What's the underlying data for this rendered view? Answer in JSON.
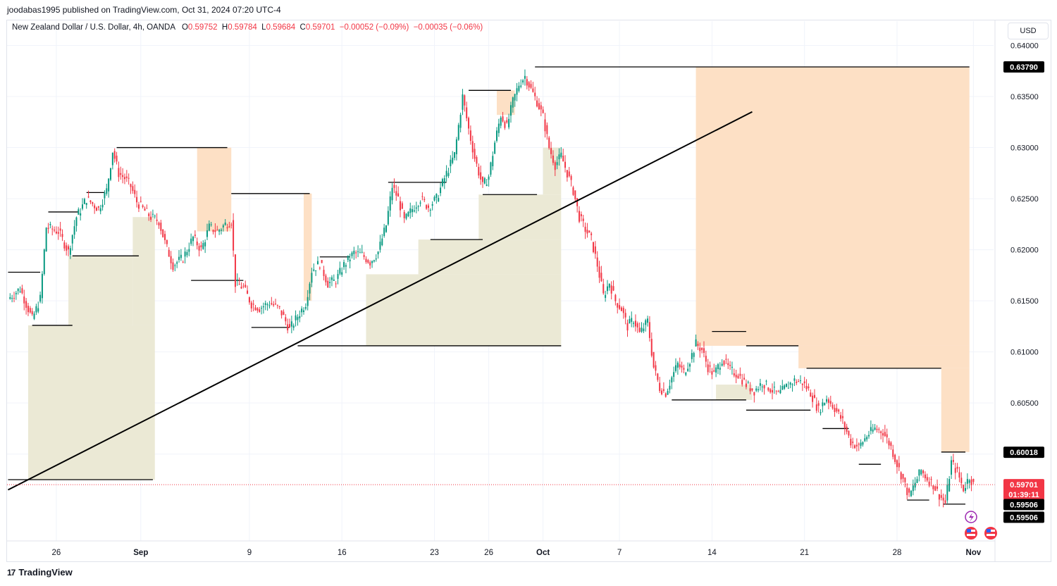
{
  "header": {
    "publisher_line": "joodabas1995 published on TradingView.com, Oct 31, 2024 07:20 UTC-4"
  },
  "legend": {
    "symbol": "New Zealand Dollar / U.S. Dollar, 4h, OANDA",
    "o_key": "O",
    "o_val": "0.59752",
    "h_key": "H",
    "h_val": "0.59784",
    "l_key": "L",
    "l_val": "0.59684",
    "c_key": "C",
    "c_val": "0.59701",
    "change": "−0.00052 (−0.09%)",
    "change2": "−0.00035 (−0.06%)"
  },
  "currency_button": "USD",
  "footer": {
    "brand": "TradingView",
    "logo": "17"
  },
  "colors": {
    "up": "#089981",
    "down": "#f23645",
    "bg": "#ffffff",
    "demand_zone": "#ebe9d5",
    "supply_zone": "#fde0c5",
    "level_line": "#000000",
    "trendline": "#000000",
    "price_line": "#f23645"
  },
  "chart_data": {
    "type": "candlestick",
    "timeframe": "4h",
    "ylim": [
      0.5915,
      0.641
    ],
    "y_ticks": [
      "0.64000",
      "0.63500",
      "0.63000",
      "0.62500",
      "0.62000",
      "0.61500",
      "0.61000",
      "0.60500",
      "0.60000"
    ],
    "x_ticks": [
      {
        "label": "26",
        "bar": 24
      },
      {
        "label": "Sep",
        "bar": 66
      },
      {
        "label": "9",
        "bar": 120
      },
      {
        "label": "16",
        "bar": 166
      },
      {
        "label": "23",
        "bar": 212
      },
      {
        "label": "26",
        "bar": 239
      },
      {
        "label": "Oct",
        "bar": 266
      },
      {
        "label": "7",
        "bar": 304
      },
      {
        "label": "14",
        "bar": 350
      },
      {
        "label": "21",
        "bar": 396
      },
      {
        "label": "28",
        "bar": 442
      },
      {
        "label": "Nov",
        "bar": 480
      }
    ],
    "close_path": [
      [
        0,
        0.6152
      ],
      [
        6,
        0.6162
      ],
      [
        12,
        0.6132
      ],
      [
        16,
        0.6152
      ],
      [
        19,
        0.6222
      ],
      [
        25,
        0.6218
      ],
      [
        30,
        0.6198
      ],
      [
        34,
        0.6232
      ],
      [
        39,
        0.625
      ],
      [
        45,
        0.624
      ],
      [
        49,
        0.6258
      ],
      [
        52,
        0.6297
      ],
      [
        55,
        0.6275
      ],
      [
        58,
        0.627
      ],
      [
        61,
        0.6262
      ],
      [
        64,
        0.6247
      ],
      [
        67,
        0.624
      ],
      [
        71,
        0.6232
      ],
      [
        75,
        0.6228
      ],
      [
        78,
        0.6207
      ],
      [
        82,
        0.6185
      ],
      [
        87,
        0.6192
      ],
      [
        92,
        0.6212
      ],
      [
        96,
        0.62
      ],
      [
        100,
        0.6222
      ],
      [
        104,
        0.6218
      ],
      [
        108,
        0.6225
      ],
      [
        111,
        0.6228
      ],
      [
        113,
        0.6167
      ],
      [
        117,
        0.6163
      ],
      [
        121,
        0.6147
      ],
      [
        125,
        0.6143
      ],
      [
        130,
        0.6148
      ],
      [
        135,
        0.6142
      ],
      [
        140,
        0.6122
      ],
      [
        144,
        0.6135
      ],
      [
        148,
        0.6148
      ],
      [
        151,
        0.618
      ],
      [
        155,
        0.6187
      ],
      [
        159,
        0.6167
      ],
      [
        163,
        0.617
      ],
      [
        167,
        0.6185
      ],
      [
        172,
        0.6197
      ],
      [
        176,
        0.6195
      ],
      [
        180,
        0.6188
      ],
      [
        184,
        0.6198
      ],
      [
        188,
        0.6224
      ],
      [
        191,
        0.6262
      ],
      [
        194,
        0.625
      ],
      [
        197,
        0.6228
      ],
      [
        201,
        0.624
      ],
      [
        205,
        0.625
      ],
      [
        209,
        0.6242
      ],
      [
        213,
        0.625
      ],
      [
        217,
        0.627
      ],
      [
        222,
        0.6293
      ],
      [
        226,
        0.635
      ],
      [
        229,
        0.6318
      ],
      [
        232,
        0.629
      ],
      [
        236,
        0.6262
      ],
      [
        239,
        0.6272
      ],
      [
        242,
        0.6305
      ],
      [
        245,
        0.6332
      ],
      [
        248,
        0.632
      ],
      [
        251,
        0.6345
      ],
      [
        254,
        0.6362
      ],
      [
        257,
        0.637
      ],
      [
        260,
        0.6357
      ],
      [
        263,
        0.6345
      ],
      [
        266,
        0.633
      ],
      [
        269,
        0.63
      ],
      [
        272,
        0.6283
      ],
      [
        275,
        0.6292
      ],
      [
        278,
        0.6275
      ],
      [
        281,
        0.6258
      ],
      [
        284,
        0.6232
      ],
      [
        287,
        0.622
      ],
      [
        290,
        0.621
      ],
      [
        293,
        0.6185
      ],
      [
        296,
        0.6155
      ],
      [
        299,
        0.6168
      ],
      [
        302,
        0.615
      ],
      [
        305,
        0.6142
      ],
      [
        308,
        0.6125
      ],
      [
        311,
        0.6132
      ],
      [
        314,
        0.6118
      ],
      [
        318,
        0.613
      ],
      [
        321,
        0.6085
      ],
      [
        324,
        0.6065
      ],
      [
        327,
        0.606
      ],
      [
        330,
        0.6075
      ],
      [
        333,
        0.6088
      ],
      [
        336,
        0.608
      ],
      [
        339,
        0.6092
      ],
      [
        342,
        0.6108
      ],
      [
        345,
        0.6102
      ],
      [
        348,
        0.6085
      ],
      [
        351,
        0.6078
      ],
      [
        355,
        0.6093
      ],
      [
        359,
        0.6082
      ],
      [
        363,
        0.6078
      ],
      [
        367,
        0.6068
      ],
      [
        371,
        0.6062
      ],
      [
        375,
        0.607
      ],
      [
        379,
        0.6064
      ],
      [
        383,
        0.6058
      ],
      [
        387,
        0.6066
      ],
      [
        391,
        0.6072
      ],
      [
        395,
        0.607
      ],
      [
        399,
        0.606
      ],
      [
        403,
        0.6043
      ],
      [
        407,
        0.6055
      ],
      [
        411,
        0.6045
      ],
      [
        415,
        0.6032
      ],
      [
        419,
        0.6012
      ],
      [
        423,
        0.6007
      ],
      [
        427,
        0.6018
      ],
      [
        431,
        0.6025
      ],
      [
        435,
        0.6022
      ],
      [
        439,
        0.6007
      ],
      [
        442,
        0.599
      ],
      [
        445,
        0.5975
      ],
      [
        448,
        0.5958
      ],
      [
        451,
        0.5972
      ],
      [
        454,
        0.5984
      ],
      [
        457,
        0.5976
      ],
      [
        460,
        0.597
      ],
      [
        463,
        0.596
      ],
      [
        466,
        0.5952
      ],
      [
        469,
        0.5992
      ],
      [
        472,
        0.5982
      ],
      [
        475,
        0.5966
      ],
      [
        478,
        0.5978
      ],
      [
        480,
        0.597
      ]
    ],
    "levels": [
      {
        "price": 0.6379,
        "from": 262,
        "to": 478
      },
      {
        "price": 0.6356,
        "from": 229,
        "to": 250
      },
      {
        "price": 0.6254,
        "from": 236,
        "to": 263
      },
      {
        "price": 0.63,
        "from": 54,
        "to": 109
      },
      {
        "price": 0.6255,
        "from": 111,
        "to": 150
      },
      {
        "price": 0.6266,
        "from": 189,
        "to": 218
      },
      {
        "price": 0.6237,
        "from": 20,
        "to": 35
      },
      {
        "price": 0.6256,
        "from": 39,
        "to": 48
      },
      {
        "price": 0.621,
        "from": 210,
        "to": 236
      },
      {
        "price": 0.6194,
        "from": 32,
        "to": 65
      },
      {
        "price": 0.6193,
        "from": 155,
        "to": 170
      },
      {
        "price": 0.6178,
        "from": 0,
        "to": 16
      },
      {
        "price": 0.617,
        "from": 91,
        "to": 117
      },
      {
        "price": 0.6126,
        "from": 12,
        "to": 32
      },
      {
        "price": 0.6124,
        "from": 121,
        "to": 140
      },
      {
        "price": 0.6106,
        "from": 144,
        "to": 275
      },
      {
        "price": 0.612,
        "from": 350,
        "to": 367
      },
      {
        "price": 0.6106,
        "from": 367,
        "to": 393
      },
      {
        "price": 0.6084,
        "from": 397,
        "to": 464
      },
      {
        "price": 0.6053,
        "from": 330,
        "to": 367
      },
      {
        "price": 0.6043,
        "from": 367,
        "to": 399
      },
      {
        "price": 0.6025,
        "from": 405,
        "to": 418
      },
      {
        "price": 0.599,
        "from": 423,
        "to": 434
      },
      {
        "price": 0.5975,
        "from": 0,
        "to": 72
      },
      {
        "price": 0.5955,
        "from": 447,
        "to": 458
      },
      {
        "price": 0.6002,
        "from": 464,
        "to": 476
      },
      {
        "price": 0.5951,
        "from": 465,
        "to": 476
      }
    ],
    "demand_zones": [
      {
        "from": 10,
        "to": 73,
        "top": 0.6126,
        "bottom": 0.5975
      },
      {
        "from": 30,
        "to": 62,
        "top": 0.6194,
        "bottom": 0.6126
      },
      {
        "from": 62,
        "to": 73,
        "top": 0.6232,
        "bottom": 0.6126
      },
      {
        "from": 178,
        "to": 275,
        "top": 0.6176,
        "bottom": 0.6106
      },
      {
        "from": 204,
        "to": 275,
        "top": 0.621,
        "bottom": 0.6176
      },
      {
        "from": 234,
        "to": 275,
        "top": 0.6254,
        "bottom": 0.621
      },
      {
        "from": 266,
        "to": 275,
        "top": 0.63,
        "bottom": 0.6254
      },
      {
        "from": 352,
        "to": 370,
        "top": 0.6068,
        "bottom": 0.6053
      }
    ],
    "supply_zones": [
      {
        "from": 94,
        "to": 111,
        "top": 0.63,
        "bottom": 0.6218
      },
      {
        "from": 147,
        "to": 151,
        "top": 0.6255,
        "bottom": 0.615
      },
      {
        "from": 243,
        "to": 252,
        "top": 0.6356,
        "bottom": 0.6332
      },
      {
        "from": 342,
        "to": 478,
        "top": 0.6379,
        "bottom": 0.6106
      },
      {
        "from": 393,
        "to": 478,
        "top": 0.6106,
        "bottom": 0.6084
      },
      {
        "from": 464,
        "to": 478,
        "top": 0.6084,
        "bottom": 0.6002
      }
    ],
    "trendline": {
      "from": [
        0,
        0.5965
      ],
      "to": [
        370,
        0.6335
      ]
    },
    "current_price": 0.59701,
    "price_labels": [
      {
        "text": "0.63790",
        "price": 0.6379,
        "style": "black"
      },
      {
        "text": "0.60018",
        "price": 0.60018,
        "style": "black"
      },
      {
        "text": "0.59701",
        "price": 0.59701,
        "style": "red"
      },
      {
        "text": "01:39:11",
        "price": 0.59606,
        "style": "red"
      },
      {
        "text": "0.59506",
        "price": 0.59506,
        "style": "black"
      },
      {
        "text": "0.59506",
        "price": 0.59382,
        "style": "black"
      }
    ]
  }
}
